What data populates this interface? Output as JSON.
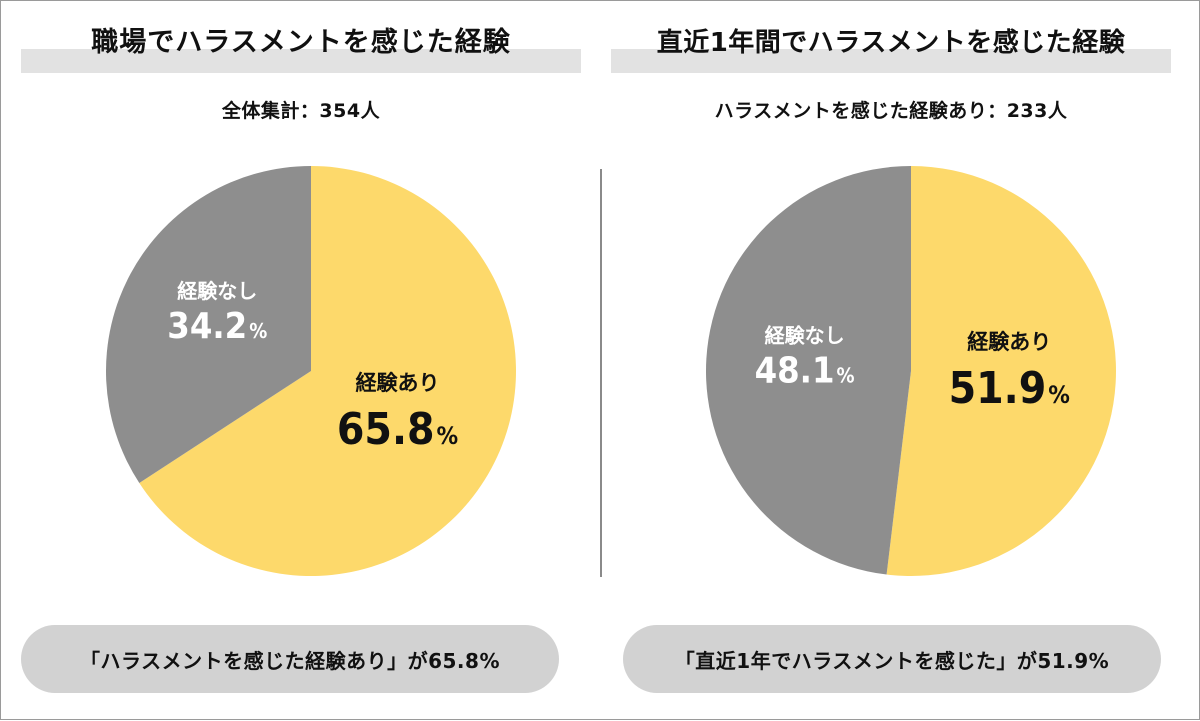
{
  "colors": {
    "yes": "#fdd96b",
    "no": "#8e8e8e",
    "label_on_yes": "#111111",
    "label_on_no": "#ffffff"
  },
  "left": {
    "title": "職場でハラスメントを感じた経験",
    "subtitle": "全体集計：354人",
    "summary": "「ハラスメントを感じた経験あり」が65.8%"
  },
  "right": {
    "title": "直近1年間でハラスメントを感じた経験",
    "subtitle": "ハラスメントを感じた経験あり：233人",
    "summary": "「直近1年でハラスメントを感じた」が51.9%"
  },
  "chart_data": [
    {
      "type": "pie",
      "title": "職場でハラスメントを感じた経験",
      "subtitle": "全体集計：354人",
      "slices": [
        {
          "label": "経験あり",
          "value": 65.8,
          "value_text": "65.8",
          "unit": "%",
          "color": "#fdd96b"
        },
        {
          "label": "経験なし",
          "value": 34.2,
          "value_text": "34.2",
          "unit": "%",
          "color": "#8e8e8e"
        }
      ]
    },
    {
      "type": "pie",
      "title": "直近1年間でハラスメントを感じた経験",
      "subtitle": "ハラスメントを感じた経験あり：233人",
      "slices": [
        {
          "label": "経験あり",
          "value": 51.9,
          "value_text": "51.9",
          "unit": "%",
          "color": "#fdd96b"
        },
        {
          "label": "経験なし",
          "value": 48.1,
          "value_text": "48.1",
          "unit": "%",
          "color": "#8e8e8e"
        }
      ]
    }
  ]
}
